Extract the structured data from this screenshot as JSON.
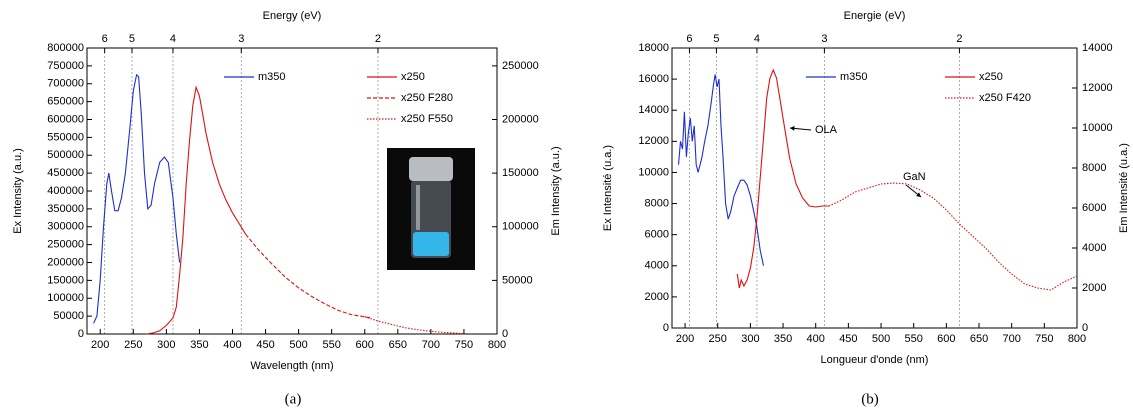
{
  "chart_data": [
    {
      "type": "line",
      "caption": "(a)",
      "xlabel": "Wavelength (nm)",
      "ylabel": "Ex Intensity (a.u.)",
      "y2label": "Em Intensity (a.u.)",
      "x2label": "Energy (eV)",
      "xlim": [
        180,
        800
      ],
      "xticks": [
        200,
        250,
        300,
        350,
        400,
        450,
        500,
        550,
        600,
        650,
        700,
        750,
        800
      ],
      "ylim": [
        0,
        800000
      ],
      "yticks": [
        0,
        50000,
        100000,
        150000,
        200000,
        250000,
        300000,
        350000,
        400000,
        450000,
        500000,
        550000,
        600000,
        650000,
        700000,
        750000,
        800000
      ],
      "y2lim": [
        0,
        266667
      ],
      "y2ticks": [
        0,
        50000,
        100000,
        150000,
        200000,
        250000
      ],
      "x2ticks": [
        {
          "value": 206.7,
          "label": "6"
        },
        {
          "value": 248,
          "label": "5"
        },
        {
          "value": 310,
          "label": "4"
        },
        {
          "value": 413.3,
          "label": "3"
        },
        {
          "value": 620,
          "label": "2"
        }
      ],
      "grid": true,
      "series": [
        {
          "name": "m350",
          "color": "#1f2fd0",
          "dash": "solid",
          "axis": "y",
          "x": [
            190,
            195,
            200,
            205,
            210,
            213,
            217,
            222,
            227,
            232,
            238,
            245,
            250,
            255,
            258,
            262,
            267,
            272,
            277,
            282,
            290,
            297,
            303,
            310,
            315,
            320
          ],
          "values": [
            30000,
            50000,
            150000,
            300000,
            420000,
            450000,
            400000,
            345000,
            345000,
            380000,
            450000,
            580000,
            680000,
            725000,
            720000,
            620000,
            450000,
            350000,
            360000,
            420000,
            480000,
            495000,
            480000,
            380000,
            280000,
            200000
          ]
        },
        {
          "name": "x250",
          "color": "#e01010",
          "dash": "solid",
          "axis": "y2",
          "x": [
            270,
            280,
            290,
            300,
            310,
            315,
            320,
            325,
            330,
            335,
            340,
            345,
            350,
            355,
            360,
            370,
            380,
            390,
            400,
            410,
            420
          ],
          "values": [
            0,
            1000,
            3000,
            8000,
            15000,
            25000,
            55000,
            90000,
            140000,
            180000,
            213000,
            230000,
            222000,
            205000,
            187000,
            160000,
            140000,
            125000,
            113000,
            103000,
            93000
          ]
        },
        {
          "name": "x250 F280",
          "color": "#e01010",
          "dash": "dashed",
          "axis": "y2",
          "x": [
            420,
            440,
            460,
            480,
            500,
            520,
            540,
            560,
            580,
            600,
            610
          ],
          "values": [
            93000,
            78000,
            65000,
            53000,
            43000,
            35000,
            28000,
            22000,
            18000,
            16000,
            15000
          ]
        },
        {
          "name": "x250 F550",
          "color": "#e01010",
          "dash": "dotted",
          "axis": "y2",
          "x": [
            600,
            620,
            640,
            660,
            680,
            700,
            720,
            740,
            750
          ],
          "values": [
            16000,
            12000,
            9000,
            6000,
            4000,
            2500,
            1500,
            700,
            300
          ]
        }
      ]
    },
    {
      "type": "line",
      "caption": "(b)",
      "xlabel": "Longueur d'onde (nm)",
      "ylabel": "Ex Intensité (u.a.)",
      "y2label": "Em Intensité (u.a.)",
      "x2label": "Energie (eV)",
      "xlim": [
        180,
        800
      ],
      "xticks": [
        200,
        250,
        300,
        350,
        400,
        450,
        500,
        550,
        600,
        650,
        700,
        750,
        800
      ],
      "ylim": [
        0,
        18000
      ],
      "yticks": [
        0,
        2000,
        4000,
        6000,
        8000,
        10000,
        12000,
        14000,
        16000,
        18000
      ],
      "y2lim": [
        0,
        14000
      ],
      "y2ticks": [
        0,
        2000,
        4000,
        6000,
        8000,
        10000,
        12000,
        14000
      ],
      "x2ticks": [
        {
          "value": 206.7,
          "label": "6"
        },
        {
          "value": 248,
          "label": "5"
        },
        {
          "value": 310,
          "label": "4"
        },
        {
          "value": 413.3,
          "label": "3"
        },
        {
          "value": 620,
          "label": "2"
        }
      ],
      "grid": true,
      "annotations": [
        "OLA",
        "GaN"
      ],
      "series": [
        {
          "name": "m350",
          "color": "#1f2fd0",
          "dash": "solid",
          "axis": "y",
          "x": [
            190,
            193,
            196,
            199,
            202,
            205,
            208,
            211,
            214,
            217,
            220,
            223,
            226,
            230,
            235,
            240,
            243,
            246,
            249,
            252,
            255,
            258,
            262,
            266,
            270,
            275,
            280,
            285,
            290,
            295,
            300,
            305,
            310,
            315,
            320
          ],
          "values": [
            10500,
            12000,
            11500,
            13900,
            11000,
            12500,
            13500,
            12000,
            13000,
            10500,
            10000,
            10500,
            11000,
            12000,
            13000,
            14500,
            15500,
            16300,
            15500,
            16000,
            13000,
            11000,
            8000,
            7000,
            7500,
            8500,
            9000,
            9500,
            9500,
            9200,
            8500,
            7500,
            6500,
            5000,
            4000
          ]
        },
        {
          "name": "x250",
          "color": "#e01010",
          "dash": "solid",
          "axis": "y2",
          "x": [
            280,
            283,
            286,
            290,
            295,
            300,
            305,
            310,
            315,
            320,
            325,
            330,
            335,
            340,
            345,
            350,
            355,
            360,
            370,
            380,
            390,
            400,
            410,
            420
          ],
          "values": [
            2700,
            2000,
            2400,
            2100,
            2400,
            3000,
            4000,
            5500,
            7500,
            9500,
            11500,
            12500,
            12900,
            12500,
            11500,
            10500,
            9500,
            8500,
            7200,
            6500,
            6100,
            6050,
            6100,
            6100
          ]
        },
        {
          "name": "x250 F420",
          "color": "#e01010",
          "dash": "dotted",
          "axis": "y2",
          "x": [
            420,
            440,
            460,
            480,
            500,
            520,
            540,
            560,
            580,
            600,
            620,
            640,
            660,
            680,
            700,
            720,
            740,
            760,
            780,
            800
          ],
          "values": [
            6100,
            6400,
            6800,
            7000,
            7200,
            7250,
            7200,
            6900,
            6500,
            5900,
            5200,
            4600,
            4000,
            3300,
            2700,
            2200,
            2000,
            1900,
            2300,
            2600
          ]
        }
      ]
    }
  ]
}
